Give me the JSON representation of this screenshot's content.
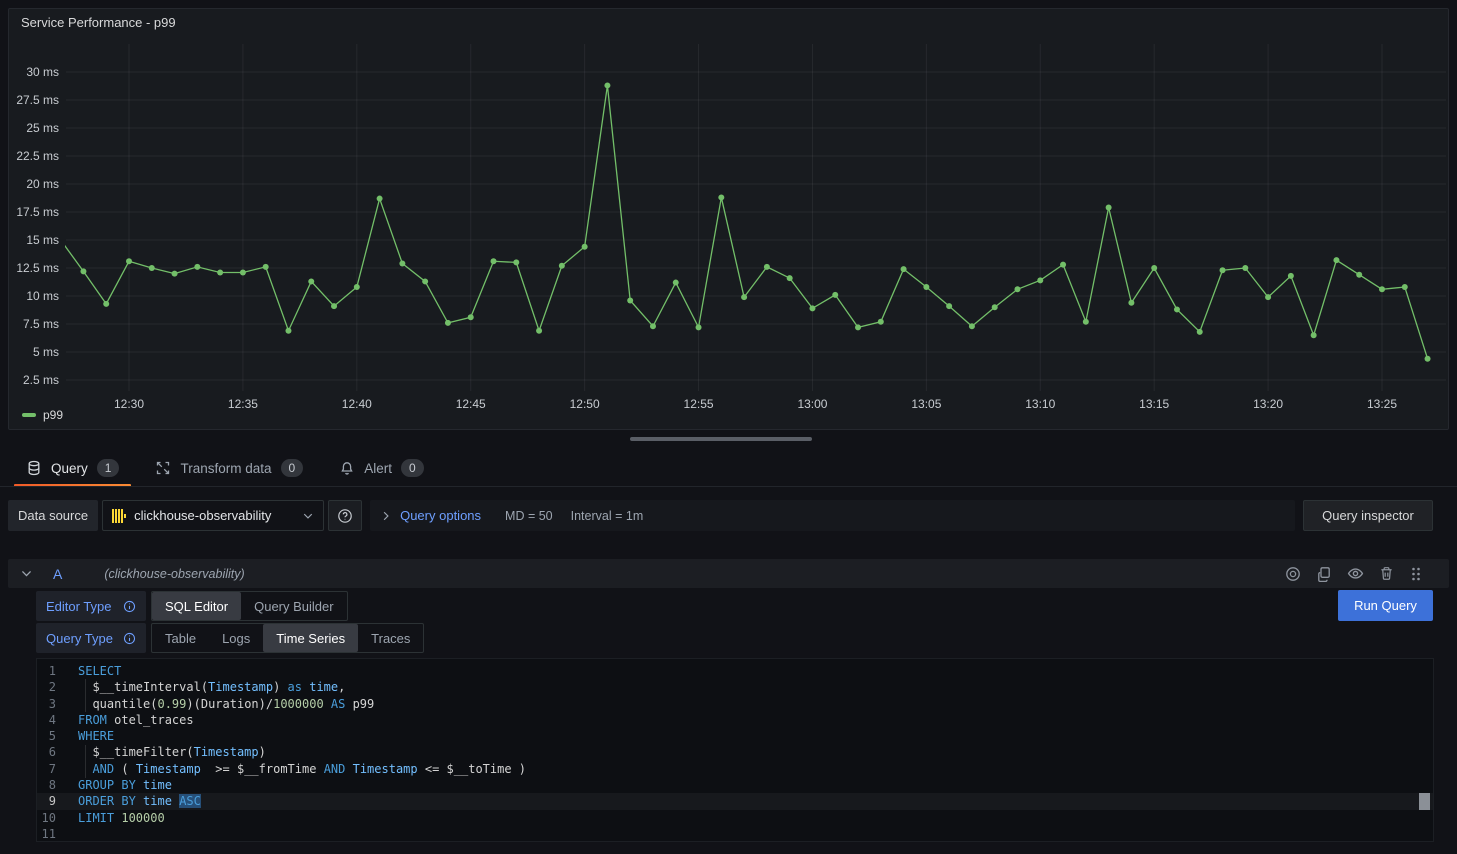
{
  "panel": {
    "title": "Service Performance - p99"
  },
  "chart_data": {
    "type": "line",
    "title": "Service Performance - p99",
    "grid": true,
    "legend_position": "bottom-left",
    "unit": "ms",
    "ylim": [
      2.5,
      30
    ],
    "y_tick_values": [
      30,
      27.5,
      25,
      22.5,
      20,
      17.5,
      15,
      12.5,
      10,
      7.5,
      5,
      2.5
    ],
    "y_tick_labels": [
      "30 ms",
      "27.5 ms",
      "25 ms",
      "22.5 ms",
      "20 ms",
      "17.5 ms",
      "15 ms",
      "12.5 ms",
      "10 ms",
      "7.5 ms",
      "5 ms",
      "2.5 ms"
    ],
    "x_ticks": [
      "12:30",
      "12:35",
      "12:40",
      "12:45",
      "12:50",
      "12:55",
      "13:00",
      "13:05",
      "13:10",
      "13:15",
      "13:20",
      "13:25"
    ],
    "series": [
      {
        "name": "p99",
        "color": "#73bf69",
        "start": "12:27",
        "interval_min": 1,
        "values": [
          15.0,
          12.2,
          9.3,
          13.1,
          12.5,
          12.0,
          12.6,
          12.1,
          12.1,
          12.6,
          6.9,
          11.3,
          9.1,
          10.8,
          18.7,
          12.9,
          11.3,
          7.6,
          8.1,
          13.1,
          13.0,
          6.9,
          12.7,
          14.4,
          28.8,
          9.6,
          7.3,
          11.2,
          7.2,
          18.8,
          9.9,
          12.6,
          11.6,
          8.9,
          10.1,
          7.2,
          7.7,
          12.4,
          10.8,
          9.1,
          7.3,
          9.0,
          10.6,
          11.4,
          12.8,
          7.7,
          17.9,
          9.4,
          12.5,
          8.8,
          6.8,
          12.3,
          12.5,
          9.9,
          11.8,
          6.5,
          13.2,
          11.9,
          10.6,
          10.8,
          4.4
        ]
      }
    ]
  },
  "tabs": [
    {
      "label": "Query",
      "count": "1",
      "icon": "database-icon",
      "active": true
    },
    {
      "label": "Transform data",
      "count": "0",
      "icon": "transform-icon",
      "active": false
    },
    {
      "label": "Alert",
      "count": "0",
      "icon": "bell-icon",
      "active": false
    }
  ],
  "datasource_bar": {
    "label": "Data source",
    "value": "clickhouse-observability",
    "query_options_label": "Query options",
    "max_data_points": "MD = 50",
    "interval": "Interval = 1m",
    "query_inspector_label": "Query inspector"
  },
  "query_row": {
    "ref_id": "A",
    "datasource_hint": "(clickhouse-observability)",
    "editor_type": {
      "label": "Editor Type",
      "options": [
        "SQL Editor",
        "Query Builder"
      ],
      "selected": "SQL Editor"
    },
    "query_type": {
      "label": "Query Type",
      "options": [
        "Table",
        "Logs",
        "Time Series",
        "Traces"
      ],
      "selected": "Time Series"
    },
    "run_query_label": "Run Query"
  },
  "sql_editor": {
    "current_line": "9",
    "lines": [
      {
        "num": "1",
        "tokens": [
          [
            "kw",
            "SELECT"
          ]
        ]
      },
      {
        "num": "2",
        "tokens": [
          [
            "txt",
            "  $__timeInterval("
          ],
          [
            "id",
            "Timestamp"
          ],
          [
            "txt",
            ") "
          ],
          [
            "kw",
            "as"
          ],
          [
            "txt",
            " "
          ],
          [
            "id",
            "time"
          ],
          [
            "txt",
            ","
          ]
        ]
      },
      {
        "num": "3",
        "tokens": [
          [
            "txt",
            "  quantile("
          ],
          [
            "num",
            "0.99"
          ],
          [
            "txt",
            ")(Duration)/"
          ],
          [
            "num",
            "1000000"
          ],
          [
            "txt",
            " "
          ],
          [
            "kw",
            "AS"
          ],
          [
            "txt",
            " p99"
          ]
        ]
      },
      {
        "num": "4",
        "tokens": [
          [
            "kw",
            "FROM"
          ],
          [
            "txt",
            " otel_traces"
          ]
        ]
      },
      {
        "num": "5",
        "tokens": [
          [
            "kw",
            "WHERE"
          ]
        ]
      },
      {
        "num": "6",
        "tokens": [
          [
            "txt",
            "  $__timeFilter("
          ],
          [
            "id",
            "Timestamp"
          ],
          [
            "txt",
            ")"
          ]
        ]
      },
      {
        "num": "7",
        "tokens": [
          [
            "txt",
            "  "
          ],
          [
            "kw",
            "AND"
          ],
          [
            "txt",
            " ( "
          ],
          [
            "id",
            "Timestamp"
          ],
          [
            "txt",
            "  >= $__fromTime "
          ],
          [
            "kw",
            "AND"
          ],
          [
            "txt",
            " "
          ],
          [
            "id",
            "Timestamp"
          ],
          [
            "txt",
            " <= $__toTime )"
          ]
        ]
      },
      {
        "num": "8",
        "tokens": [
          [
            "kw",
            "GROUP"
          ],
          [
            "txt",
            " "
          ],
          [
            "kw",
            "BY"
          ],
          [
            "txt",
            " "
          ],
          [
            "id",
            "time"
          ]
        ]
      },
      {
        "num": "9",
        "tokens": [
          [
            "kw",
            "ORDER"
          ],
          [
            "txt",
            " "
          ],
          [
            "kw",
            "BY"
          ],
          [
            "txt",
            " "
          ],
          [
            "id",
            "time"
          ],
          [
            "txt",
            " "
          ],
          [
            "kwsel",
            "ASC"
          ]
        ]
      },
      {
        "num": "10",
        "tokens": [
          [
            "kw",
            "LIMIT"
          ],
          [
            "txt",
            " "
          ],
          [
            "num",
            "100000"
          ]
        ]
      },
      {
        "num": "11",
        "tokens": []
      }
    ]
  },
  "colors": {
    "accent_blue": "#3d71d9",
    "link_blue": "#6e9fff",
    "series_green": "#73bf69",
    "tab_underline": "#f05a28",
    "clickhouse_yellow": "#fdd835"
  }
}
